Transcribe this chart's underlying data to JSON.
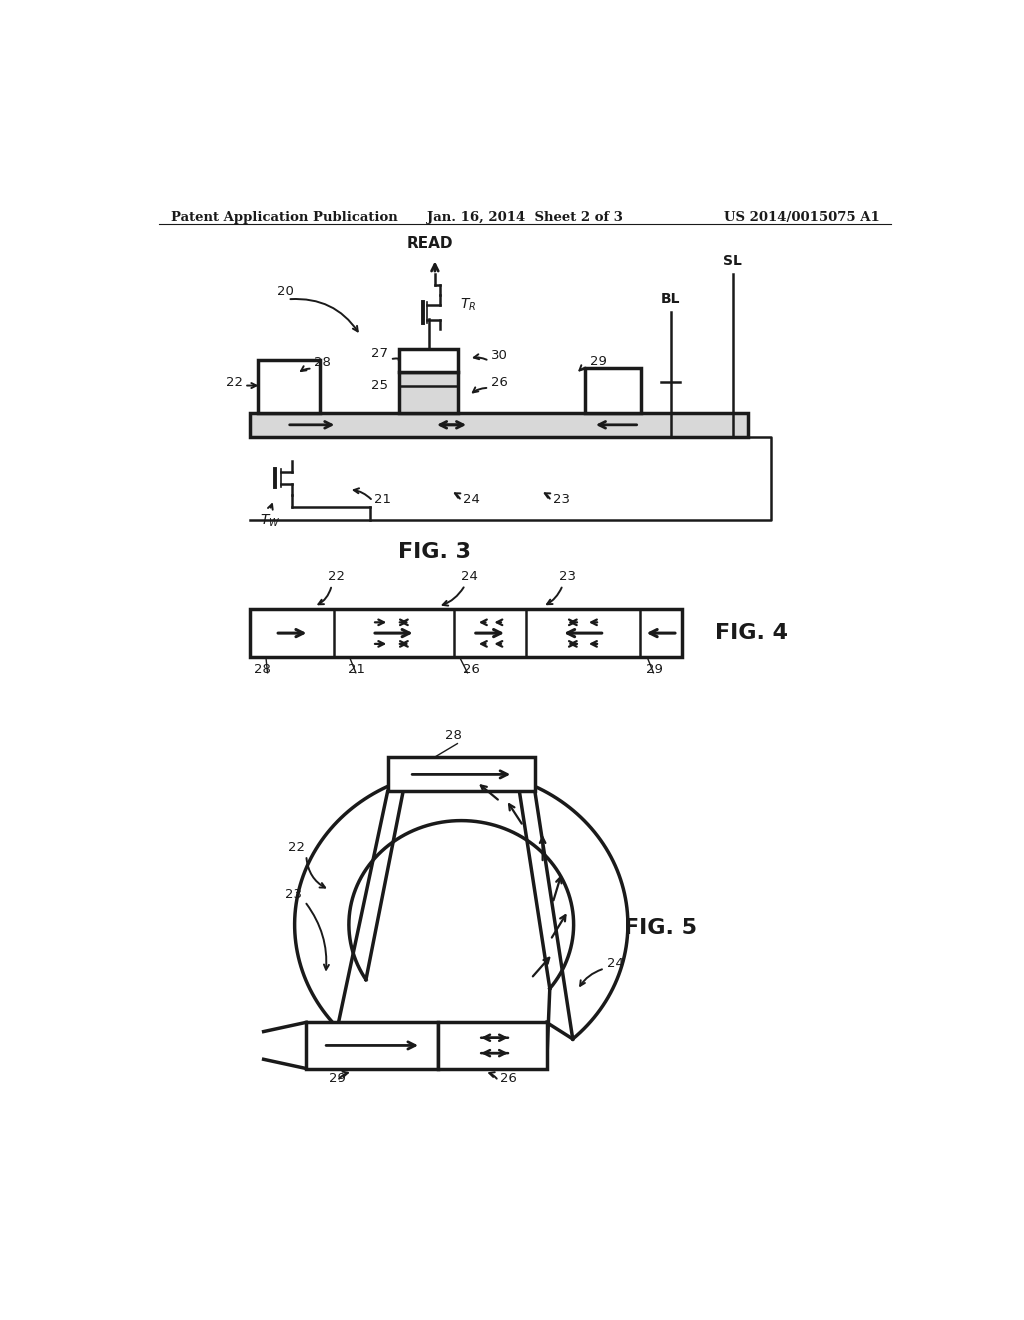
{
  "bg_color": "#ffffff",
  "line_color": "#1a1a1a",
  "header_left": "Patent Application Publication",
  "header_center": "Jan. 16, 2014  Sheet 2 of 3",
  "header_right": "US 2014/0015075 A1",
  "fig3_label": "FIG. 3",
  "fig4_label": "FIG. 4",
  "fig5_label": "FIG. 5"
}
